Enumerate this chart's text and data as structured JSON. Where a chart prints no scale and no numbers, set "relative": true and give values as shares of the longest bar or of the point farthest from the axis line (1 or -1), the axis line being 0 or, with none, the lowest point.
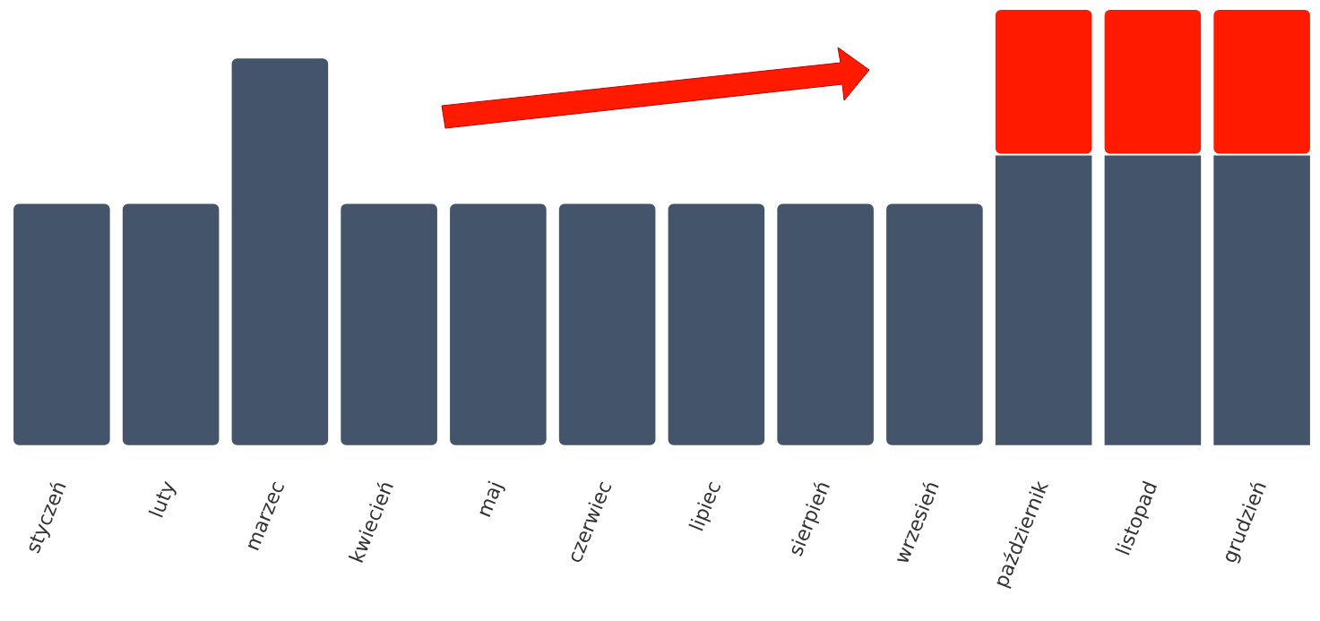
{
  "chart_data": {
    "type": "bar",
    "stacked": true,
    "relative": true,
    "categories": [
      "styczeń",
      "luty",
      "marzec",
      "kwiecień",
      "maj",
      "czerwiec",
      "lipiec",
      "sierpień",
      "wrzesień",
      "październik",
      "listopad",
      "grudzień"
    ],
    "series": [
      {
        "color": "#44546a",
        "values": [
          0.556,
          0.556,
          0.889,
          0.556,
          0.556,
          0.556,
          0.556,
          0.556,
          0.556,
          0.667,
          0.667,
          0.667
        ]
      },
      {
        "color": "#ff1a00",
        "values": [
          0,
          0,
          0,
          0,
          0,
          0,
          0,
          0,
          0,
          0.333,
          0.333,
          0.333
        ]
      }
    ]
  }
}
